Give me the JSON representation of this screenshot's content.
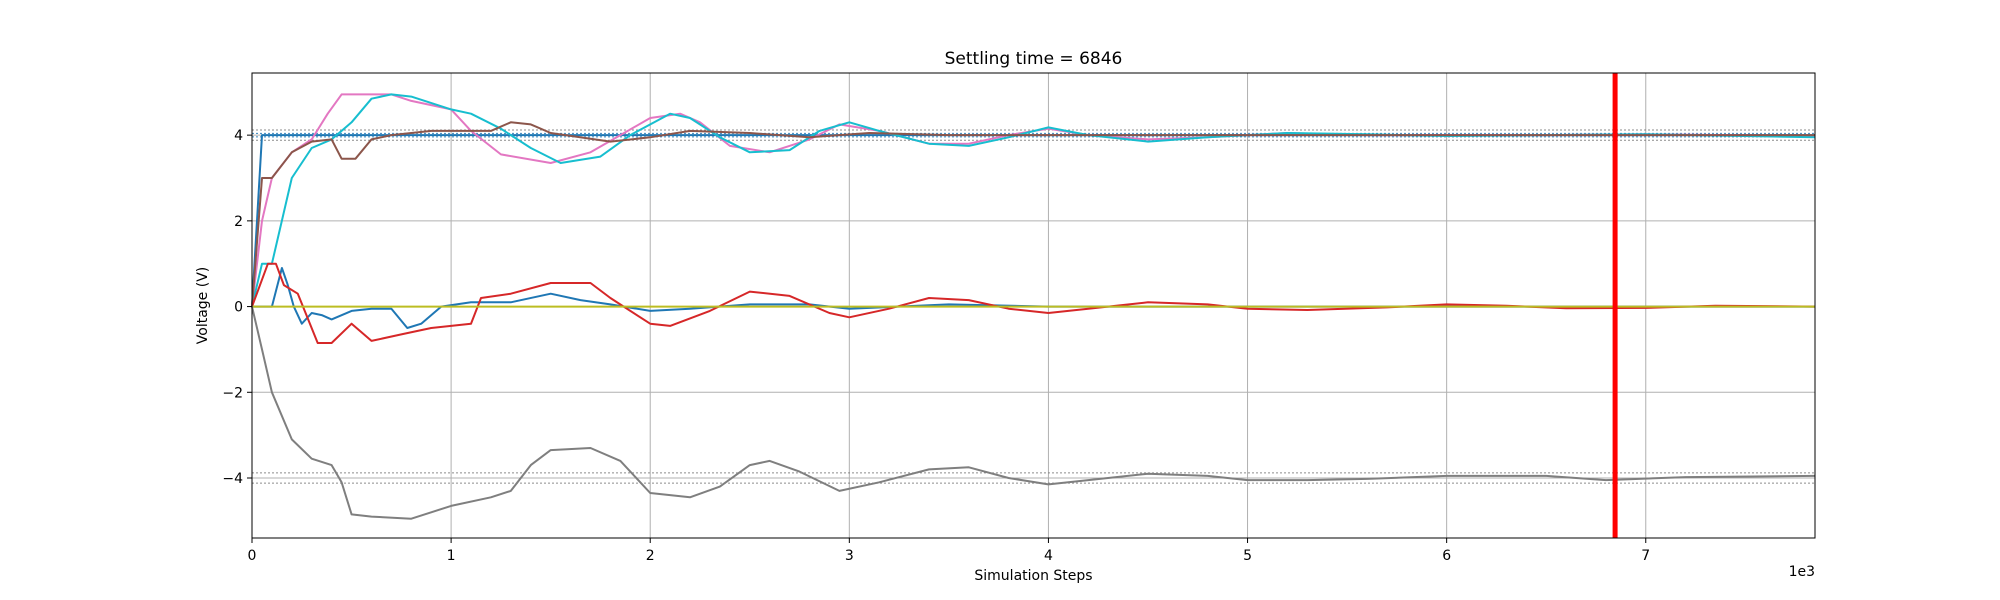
{
  "chart_data": {
    "type": "line",
    "title": "Settling time = 6846",
    "xlabel": "Simulation Steps",
    "ylabel": "Voltage (V)",
    "x_multiplier_label": "1e3",
    "xlim": [
      0,
      7850
    ],
    "ylim": [
      -5.4,
      5.45
    ],
    "x_ticks": [
      0,
      1000,
      2000,
      3000,
      4000,
      5000,
      6000,
      7000
    ],
    "x_tick_labels": [
      "0",
      "1",
      "2",
      "3",
      "4",
      "5",
      "6",
      "7"
    ],
    "y_ticks": [
      -4,
      -2,
      0,
      2,
      4
    ],
    "y_tick_labels": [
      "−4",
      "−2",
      "0",
      "2",
      "4"
    ],
    "grid": true,
    "settling_time": 6846,
    "settling_color": "#ff0000",
    "reference_bands": [
      {
        "color": "#1f77b4",
        "y": [
          3.96,
          4.04
        ]
      },
      {
        "color": "#7f7f7f",
        "y": [
          3.88,
          4.12,
          -3.88,
          -4.12
        ]
      }
    ],
    "series": [
      {
        "color": "#1f77b4",
        "points": [
          [
            0,
            0
          ],
          [
            50,
            4
          ],
          [
            200,
            4
          ],
          [
            1000,
            4
          ],
          [
            7850,
            4
          ]
        ]
      },
      {
        "color": "#e377c2",
        "points": [
          [
            0,
            0
          ],
          [
            50,
            2
          ],
          [
            100,
            3
          ],
          [
            200,
            3.6
          ],
          [
            300,
            3.9
          ],
          [
            380,
            4.5
          ],
          [
            450,
            4.95
          ],
          [
            700,
            4.95
          ],
          [
            800,
            4.8
          ],
          [
            1000,
            4.6
          ],
          [
            1100,
            4.1
          ],
          [
            1250,
            3.55
          ],
          [
            1500,
            3.35
          ],
          [
            1700,
            3.6
          ],
          [
            1850,
            4
          ],
          [
            2000,
            4.4
          ],
          [
            2150,
            4.5
          ],
          [
            2250,
            4.3
          ],
          [
            2400,
            3.75
          ],
          [
            2600,
            3.6
          ],
          [
            2800,
            3.9
          ],
          [
            2950,
            4.25
          ],
          [
            3150,
            4.1
          ],
          [
            3400,
            3.8
          ],
          [
            3600,
            3.8
          ],
          [
            3800,
            4
          ],
          [
            4000,
            4.15
          ],
          [
            4200,
            4
          ],
          [
            4500,
            3.9
          ],
          [
            4800,
            3.95
          ],
          [
            5200,
            4.05
          ],
          [
            5600,
            4
          ],
          [
            6000,
            4
          ],
          [
            6500,
            4
          ],
          [
            7000,
            4.02
          ],
          [
            7850,
            3.98
          ]
        ]
      },
      {
        "color": "#17becf",
        "points": [
          [
            0,
            0
          ],
          [
            50,
            1
          ],
          [
            100,
            1
          ],
          [
            200,
            3
          ],
          [
            300,
            3.7
          ],
          [
            400,
            3.9
          ],
          [
            500,
            4.3
          ],
          [
            600,
            4.85
          ],
          [
            700,
            4.95
          ],
          [
            800,
            4.9
          ],
          [
            1000,
            4.6
          ],
          [
            1100,
            4.5
          ],
          [
            1250,
            4.15
          ],
          [
            1400,
            3.7
          ],
          [
            1550,
            3.35
          ],
          [
            1750,
            3.5
          ],
          [
            1900,
            4
          ],
          [
            2100,
            4.5
          ],
          [
            2200,
            4.4
          ],
          [
            2350,
            3.95
          ],
          [
            2500,
            3.6
          ],
          [
            2700,
            3.65
          ],
          [
            2850,
            4.1
          ],
          [
            3000,
            4.3
          ],
          [
            3150,
            4.1
          ],
          [
            3400,
            3.8
          ],
          [
            3600,
            3.75
          ],
          [
            3800,
            3.95
          ],
          [
            4000,
            4.18
          ],
          [
            4200,
            4
          ],
          [
            4500,
            3.85
          ],
          [
            4800,
            3.95
          ],
          [
            5200,
            4.05
          ],
          [
            5600,
            4.02
          ],
          [
            6000,
            3.98
          ],
          [
            6500,
            4
          ],
          [
            7000,
            4.02
          ],
          [
            7850,
            3.95
          ]
        ]
      },
      {
        "color": "#8c564b",
        "points": [
          [
            0,
            0
          ],
          [
            50,
            3
          ],
          [
            100,
            3
          ],
          [
            200,
            3.6
          ],
          [
            300,
            3.85
          ],
          [
            400,
            3.9
          ],
          [
            450,
            3.45
          ],
          [
            520,
            3.45
          ],
          [
            600,
            3.9
          ],
          [
            700,
            4
          ],
          [
            900,
            4.1
          ],
          [
            1200,
            4.1
          ],
          [
            1300,
            4.3
          ],
          [
            1400,
            4.25
          ],
          [
            1500,
            4.05
          ],
          [
            1800,
            3.85
          ],
          [
            2000,
            3.95
          ],
          [
            2200,
            4.1
          ],
          [
            2500,
            4.05
          ],
          [
            2800,
            3.95
          ],
          [
            3100,
            4.05
          ],
          [
            3500,
            4
          ],
          [
            4000,
            4
          ],
          [
            5000,
            4
          ],
          [
            6000,
            4
          ],
          [
            7000,
            4
          ],
          [
            7850,
            4
          ]
        ]
      },
      {
        "color": "#1f77b4",
        "points": [
          [
            0,
            0
          ],
          [
            100,
            0
          ],
          [
            150,
            0.9
          ],
          [
            180,
            0.5
          ],
          [
            210,
            0
          ],
          [
            250,
            -0.4
          ],
          [
            300,
            -0.15
          ],
          [
            350,
            -0.2
          ],
          [
            400,
            -0.3
          ],
          [
            500,
            -0.1
          ],
          [
            600,
            -0.05
          ],
          [
            700,
            -0.05
          ],
          [
            780,
            -0.5
          ],
          [
            850,
            -0.4
          ],
          [
            950,
            0
          ],
          [
            1100,
            0.1
          ],
          [
            1300,
            0.1
          ],
          [
            1500,
            0.3
          ],
          [
            1650,
            0.15
          ],
          [
            1800,
            0.05
          ],
          [
            2000,
            -0.1
          ],
          [
            2200,
            -0.05
          ],
          [
            2500,
            0.05
          ],
          [
            2800,
            0.05
          ],
          [
            3000,
            -0.05
          ],
          [
            3500,
            0.05
          ],
          [
            4000,
            0
          ],
          [
            5000,
            0
          ],
          [
            7850,
            0
          ]
        ]
      },
      {
        "color": "#d62728",
        "points": [
          [
            0,
            0
          ],
          [
            80,
            1
          ],
          [
            120,
            1
          ],
          [
            160,
            0.5
          ],
          [
            230,
            0.3
          ],
          [
            330,
            -0.85
          ],
          [
            400,
            -0.85
          ],
          [
            500,
            -0.4
          ],
          [
            600,
            -0.8
          ],
          [
            750,
            -0.65
          ],
          [
            900,
            -0.5
          ],
          [
            1100,
            -0.4
          ],
          [
            1150,
            0.2
          ],
          [
            1300,
            0.3
          ],
          [
            1500,
            0.55
          ],
          [
            1700,
            0.55
          ],
          [
            1800,
            0.2
          ],
          [
            2000,
            -0.4
          ],
          [
            2100,
            -0.45
          ],
          [
            2300,
            -0.1
          ],
          [
            2500,
            0.35
          ],
          [
            2700,
            0.25
          ],
          [
            2900,
            -0.15
          ],
          [
            3000,
            -0.25
          ],
          [
            3200,
            -0.05
          ],
          [
            3400,
            0.2
          ],
          [
            3600,
            0.15
          ],
          [
            3800,
            -0.05
          ],
          [
            4000,
            -0.15
          ],
          [
            4200,
            -0.05
          ],
          [
            4500,
            0.1
          ],
          [
            4800,
            0.05
          ],
          [
            5000,
            -0.05
          ],
          [
            5300,
            -0.08
          ],
          [
            5700,
            -0.02
          ],
          [
            6000,
            0.05
          ],
          [
            6300,
            0.02
          ],
          [
            6600,
            -0.04
          ],
          [
            7000,
            -0.03
          ],
          [
            7350,
            0.02
          ],
          [
            7850,
            0
          ]
        ]
      },
      {
        "color": "#bcbd22",
        "points": [
          [
            0,
            0
          ],
          [
            7850,
            0
          ]
        ]
      },
      {
        "color": "#7f7f7f",
        "points": [
          [
            0,
            0
          ],
          [
            50,
            -1
          ],
          [
            100,
            -2
          ],
          [
            200,
            -3.1
          ],
          [
            300,
            -3.55
          ],
          [
            400,
            -3.7
          ],
          [
            450,
            -4.1
          ],
          [
            500,
            -4.85
          ],
          [
            600,
            -4.9
          ],
          [
            800,
            -4.95
          ],
          [
            900,
            -4.8
          ],
          [
            1000,
            -4.65
          ],
          [
            1200,
            -4.45
          ],
          [
            1300,
            -4.3
          ],
          [
            1400,
            -3.7
          ],
          [
            1500,
            -3.35
          ],
          [
            1700,
            -3.3
          ],
          [
            1850,
            -3.6
          ],
          [
            2000,
            -4.35
          ],
          [
            2200,
            -4.45
          ],
          [
            2350,
            -4.2
          ],
          [
            2500,
            -3.7
          ],
          [
            2600,
            -3.6
          ],
          [
            2750,
            -3.85
          ],
          [
            2950,
            -4.3
          ],
          [
            3150,
            -4.1
          ],
          [
            3400,
            -3.8
          ],
          [
            3600,
            -3.75
          ],
          [
            3800,
            -4
          ],
          [
            4000,
            -4.15
          ],
          [
            4200,
            -4.05
          ],
          [
            4500,
            -3.9
          ],
          [
            4800,
            -3.95
          ],
          [
            5000,
            -4.05
          ],
          [
            5300,
            -4.05
          ],
          [
            5600,
            -4.02
          ],
          [
            6000,
            -3.95
          ],
          [
            6500,
            -3.95
          ],
          [
            6800,
            -4.05
          ],
          [
            7200,
            -3.98
          ],
          [
            7850,
            -3.95
          ]
        ]
      }
    ]
  }
}
